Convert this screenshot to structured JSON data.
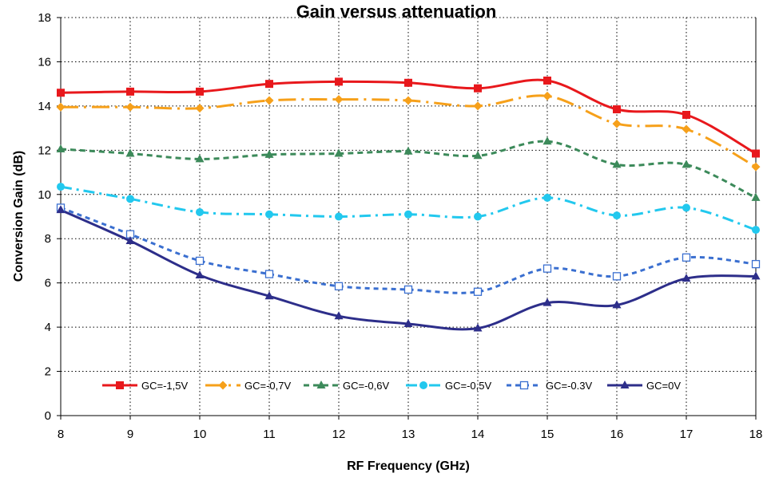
{
  "chart_data": {
    "type": "line",
    "title": "Gain versus attenuation",
    "xlabel": "RF Frequency (GHz)",
    "ylabel": "Conversion Gain  (dB)",
    "x": [
      8,
      9,
      10,
      11,
      12,
      13,
      14,
      15,
      16,
      17,
      18
    ],
    "xlim": [
      8,
      18
    ],
    "ylim": [
      0,
      18
    ],
    "x_ticks": [
      "8",
      "9",
      "10",
      "11",
      "12",
      "13",
      "14",
      "15",
      "16",
      "17",
      "18"
    ],
    "y_ticks": [
      "0",
      "2",
      "4",
      "6",
      "8",
      "10",
      "12",
      "14",
      "16",
      "18"
    ],
    "grid": "dotted",
    "legend_position": "bottom-inside",
    "series": [
      {
        "name": "GC=-1,5V",
        "color": "#e8181c",
        "marker": "square",
        "dash": "solid",
        "values": [
          14.6,
          14.65,
          14.65,
          15.0,
          15.1,
          15.05,
          14.8,
          15.15,
          13.85,
          13.6,
          11.85
        ]
      },
      {
        "name": "GC=-0,7V",
        "color": "#f6a01a",
        "marker": "diamond",
        "dash": "longdashdot",
        "values": [
          13.95,
          13.95,
          13.9,
          14.25,
          14.3,
          14.25,
          14.0,
          14.45,
          13.2,
          12.95,
          11.25
        ]
      },
      {
        "name": "GC=-0,6V",
        "color": "#3c8a5a",
        "marker": "triangle",
        "dash": "dash",
        "values": [
          12.05,
          11.85,
          11.6,
          11.8,
          11.85,
          11.95,
          11.75,
          12.4,
          11.35,
          11.35,
          9.85
        ]
      },
      {
        "name": "GC=-0,5V",
        "color": "#22c8ee",
        "marker": "circle",
        "dash": "dashdot",
        "values": [
          10.35,
          9.8,
          9.2,
          9.1,
          9.0,
          9.1,
          9.0,
          9.85,
          9.05,
          9.4,
          8.4
        ]
      },
      {
        "name": "GC=-0.3V",
        "color": "#3a6fd0",
        "marker": "open-square",
        "dash": "shortdash",
        "values": [
          9.4,
          8.2,
          7.0,
          6.4,
          5.85,
          5.7,
          5.6,
          6.65,
          6.3,
          7.15,
          6.85
        ]
      },
      {
        "name": "GC=0V",
        "color": "#2d2e8a",
        "marker": "triangle",
        "dash": "solid",
        "values": [
          9.3,
          7.9,
          6.35,
          5.4,
          4.5,
          4.15,
          3.95,
          5.1,
          5.0,
          6.2,
          6.3
        ]
      }
    ]
  }
}
